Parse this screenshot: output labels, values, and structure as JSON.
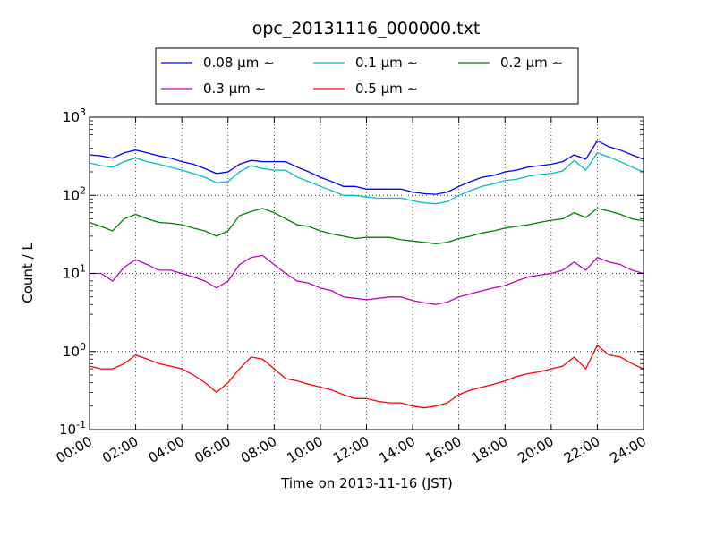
{
  "chart_data": {
    "type": "line",
    "title": "opc_20131116_000000.txt",
    "xlabel": "Time on 2013-11-16 (JST)",
    "ylabel": "Count / L",
    "xlim": [
      "00:00",
      "24:00"
    ],
    "ylim": [
      0.1,
      1000
    ],
    "yscale": "log",
    "grid": true,
    "legend_position": "top",
    "x_tick_labels": [
      "00:00",
      "02:00",
      "04:00",
      "06:00",
      "08:00",
      "10:00",
      "12:00",
      "14:00",
      "16:00",
      "18:00",
      "20:00",
      "22:00",
      "24:00"
    ],
    "y_tick_labels": [
      {
        "base": "10",
        "exp": "-1",
        "value": 0.1
      },
      {
        "base": "10",
        "exp": "0",
        "value": 1
      },
      {
        "base": "10",
        "exp": "1",
        "value": 10
      },
      {
        "base": "10",
        "exp": "2",
        "value": 100
      },
      {
        "base": "10",
        "exp": "3",
        "value": 1000
      }
    ],
    "x": [
      "00:00",
      "00:30",
      "01:00",
      "01:30",
      "02:00",
      "02:30",
      "03:00",
      "03:30",
      "04:00",
      "04:30",
      "05:00",
      "05:30",
      "06:00",
      "06:30",
      "07:00",
      "07:30",
      "08:00",
      "08:30",
      "09:00",
      "09:30",
      "10:00",
      "10:30",
      "11:00",
      "11:30",
      "12:00",
      "12:30",
      "13:00",
      "13:30",
      "14:00",
      "14:30",
      "15:00",
      "15:30",
      "16:00",
      "16:30",
      "17:00",
      "17:30",
      "18:00",
      "18:30",
      "19:00",
      "19:30",
      "20:00",
      "20:30",
      "21:00",
      "21:30",
      "22:00",
      "22:30",
      "23:00",
      "23:30",
      "24:00"
    ],
    "series": [
      {
        "name": "0.08 μm ~",
        "color": "#0000ff",
        "values": [
          330,
          320,
          300,
          350,
          380,
          350,
          320,
          300,
          270,
          250,
          220,
          190,
          200,
          250,
          280,
          270,
          270,
          270,
          230,
          200,
          170,
          150,
          130,
          130,
          120,
          120,
          120,
          120,
          110,
          105,
          103,
          110,
          130,
          150,
          170,
          180,
          200,
          210,
          230,
          240,
          250,
          270,
          330,
          290,
          500,
          420,
          380,
          330,
          290
        ]
      },
      {
        "name": "0.1 μm ~",
        "color": "#00bfbf",
        "values": [
          260,
          240,
          230,
          270,
          300,
          270,
          250,
          230,
          210,
          190,
          170,
          145,
          150,
          200,
          240,
          220,
          210,
          210,
          170,
          150,
          130,
          115,
          100,
          100,
          95,
          92,
          92,
          92,
          85,
          80,
          78,
          83,
          100,
          115,
          130,
          140,
          155,
          160,
          175,
          185,
          190,
          205,
          280,
          210,
          350,
          310,
          270,
          230,
          200
        ]
      },
      {
        "name": "0.2 μm ~",
        "color": "#008000",
        "values": [
          45,
          40,
          35,
          50,
          57,
          50,
          45,
          44,
          42,
          38,
          35,
          30,
          35,
          55,
          62,
          68,
          60,
          50,
          42,
          40,
          35,
          32,
          30,
          28,
          29,
          29,
          29,
          27,
          26,
          25,
          24,
          25,
          28,
          30,
          33,
          35,
          38,
          40,
          42,
          45,
          48,
          50,
          60,
          52,
          68,
          63,
          57,
          50,
          47
        ]
      },
      {
        "name": "0.3 μm ~",
        "color": "#bf00bf",
        "values": [
          10,
          10,
          8,
          12,
          15,
          13,
          11,
          11,
          10,
          9,
          8,
          6.5,
          8,
          13,
          16,
          17,
          13,
          10,
          8,
          7.5,
          6.5,
          6,
          5,
          4.8,
          4.6,
          4.8,
          5,
          5,
          4.5,
          4.2,
          4,
          4.3,
          5,
          5.5,
          6,
          6.5,
          7,
          8,
          9,
          9.5,
          10,
          11,
          14,
          11,
          16,
          14,
          13,
          11,
          10
        ]
      },
      {
        "name": "0.5 μm ~",
        "color": "#ff0000",
        "values": [
          0.65,
          0.6,
          0.6,
          0.7,
          0.9,
          0.8,
          0.7,
          0.65,
          0.6,
          0.5,
          0.4,
          0.3,
          0.4,
          0.6,
          0.85,
          0.8,
          0.6,
          0.45,
          0.42,
          0.38,
          0.35,
          0.32,
          0.28,
          0.25,
          0.25,
          0.23,
          0.22,
          0.22,
          0.2,
          0.19,
          0.2,
          0.22,
          0.28,
          0.32,
          0.35,
          0.38,
          0.42,
          0.48,
          0.52,
          0.55,
          0.6,
          0.65,
          0.85,
          0.6,
          1.2,
          0.9,
          0.85,
          0.7,
          0.6
        ]
      }
    ]
  }
}
